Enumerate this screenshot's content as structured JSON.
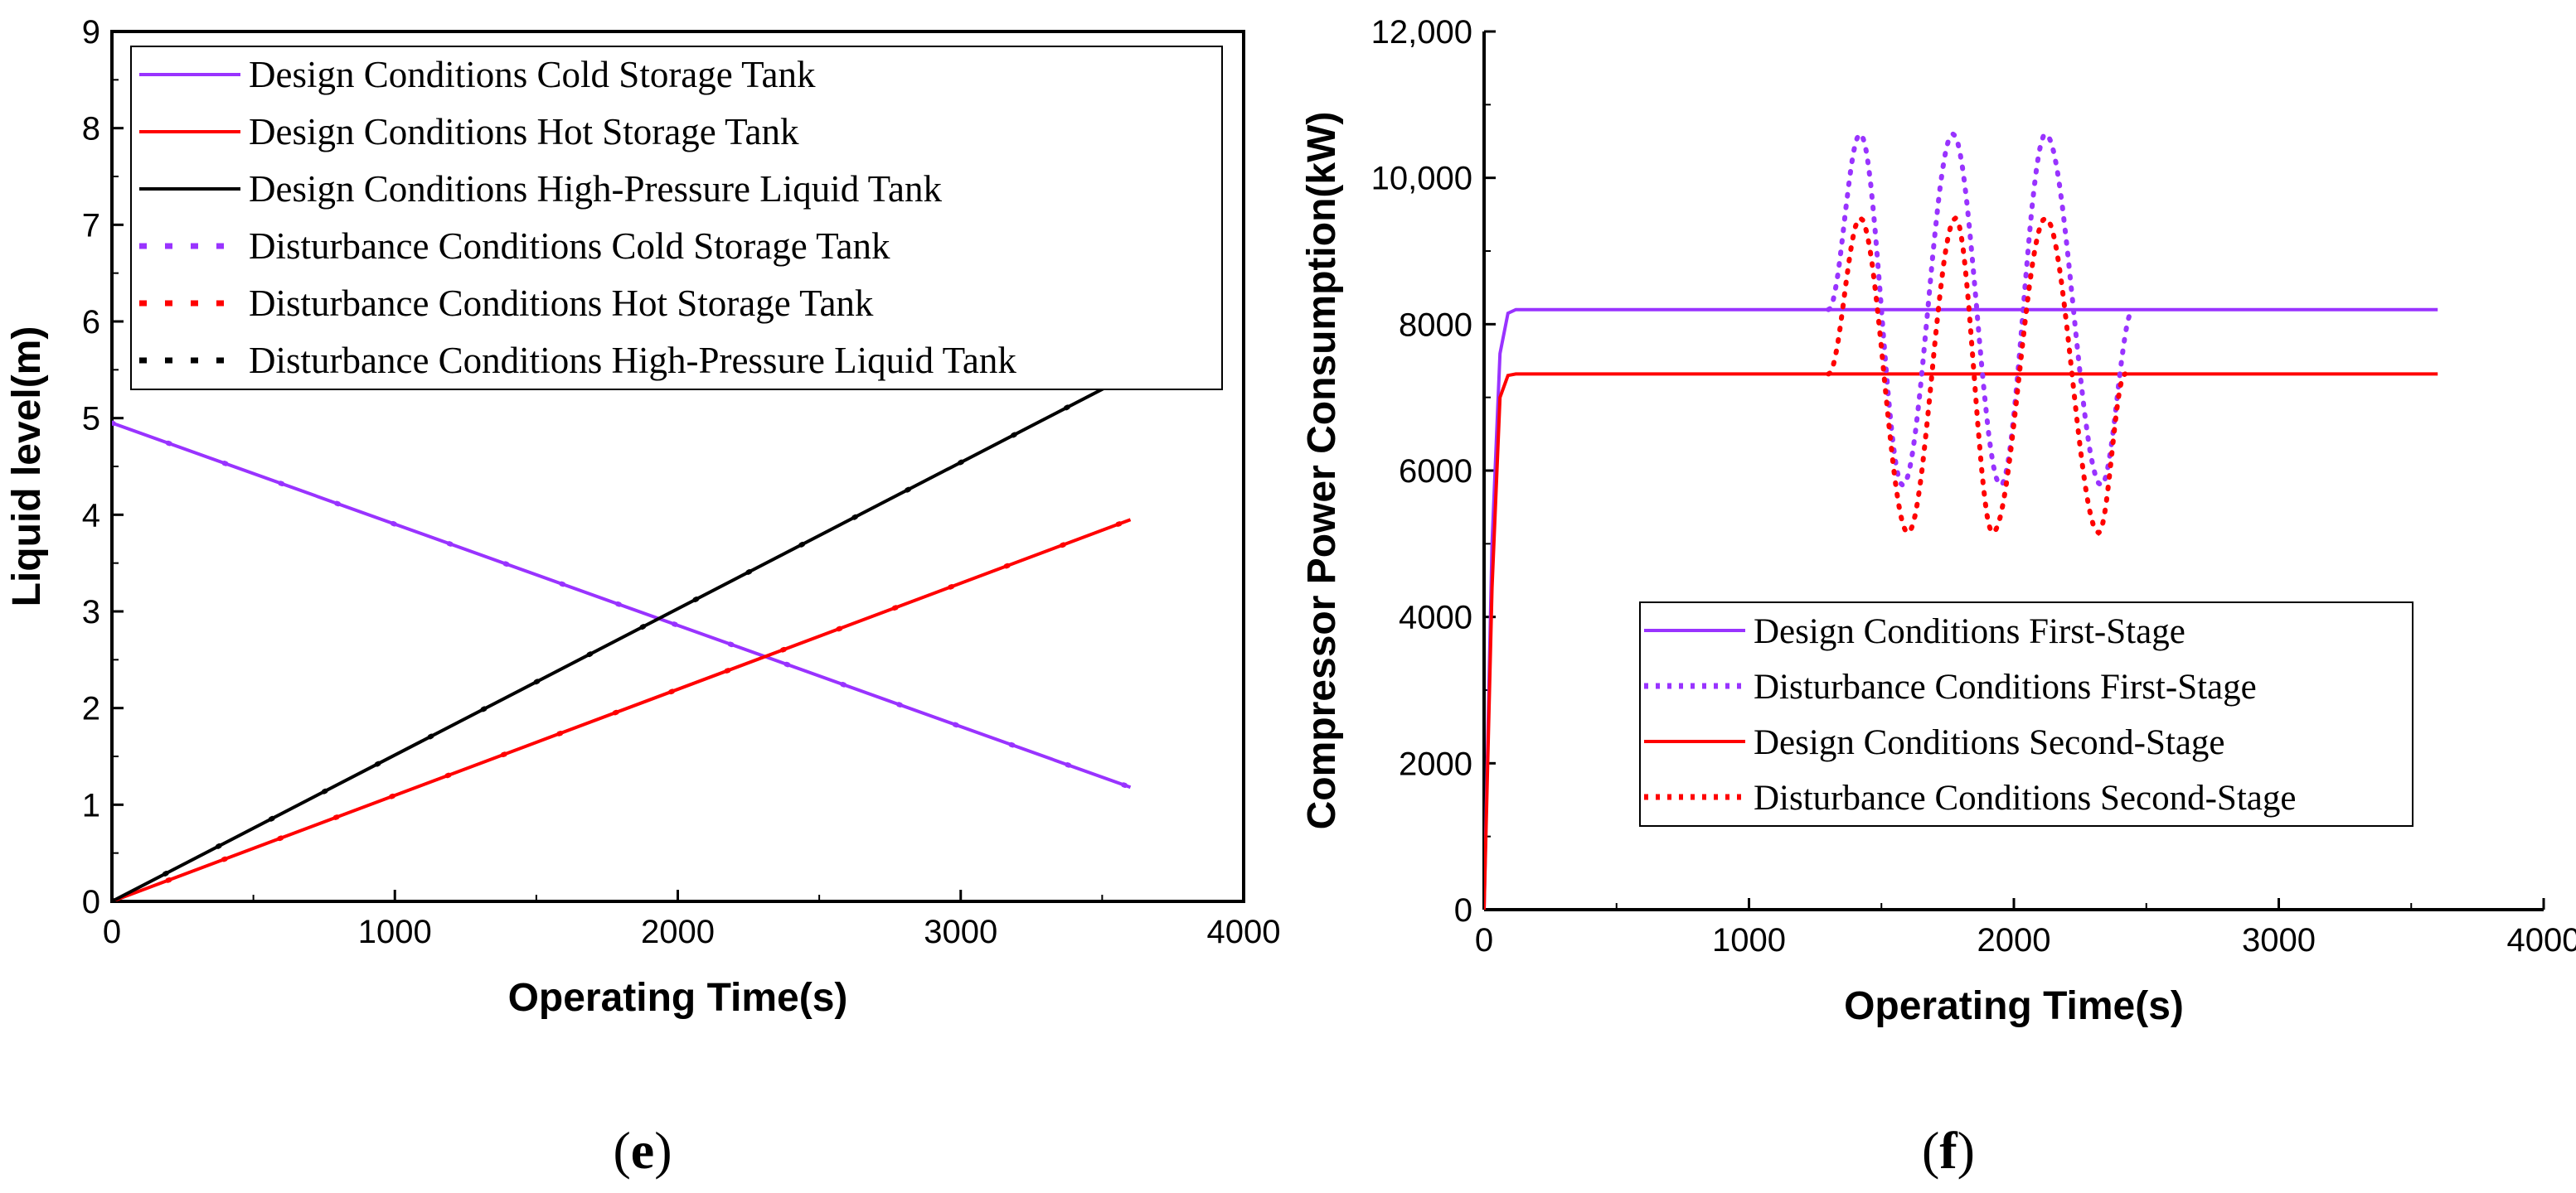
{
  "panels": [
    {
      "caption_label": "e",
      "plot_frame": "boxed",
      "legend_placement": "top-left",
      "chart_data": {
        "type": "line",
        "title": "",
        "xlabel": "Operating Time(s)",
        "ylabel": "Liquid level(m)",
        "xlim": [
          0,
          4000
        ],
        "ylim": [
          0,
          9
        ],
        "xticks": [
          0,
          1000,
          2000,
          3000,
          4000
        ],
        "xtick_labels": [
          "0",
          "1000",
          "2000",
          "3000",
          "4000"
        ],
        "yticks": [
          0,
          1,
          2,
          3,
          4,
          5,
          6,
          7,
          8,
          9
        ],
        "ytick_labels": [
          "0",
          "1",
          "2",
          "3",
          "4",
          "5",
          "6",
          "7",
          "8",
          "9"
        ],
        "grid": false,
        "series": [
          {
            "name": "Design Conditions Cold Storage Tank",
            "color": "#9933ff",
            "style": "solid",
            "x": [
              0,
              3600
            ],
            "y": [
              4.95,
              1.18
            ]
          },
          {
            "name": "Design Conditions Hot Storage Tank",
            "color": "#ff0000",
            "style": "solid",
            "x": [
              0,
              3600
            ],
            "y": [
              0,
              3.95
            ]
          },
          {
            "name": "Design Conditions High-Pressure Liquid Tank",
            "color": "#000000",
            "style": "solid",
            "x": [
              0,
              3600
            ],
            "y": [
              0,
              5.45
            ]
          },
          {
            "name": "Disturbance Conditions Cold Storage Tank",
            "color": "#9933ff",
            "style": "dotted",
            "x": [
              0,
              3600
            ],
            "y": [
              4.95,
              1.18
            ]
          },
          {
            "name": "Disturbance Conditions  Hot Storage Tank",
            "color": "#ff0000",
            "style": "dotted",
            "x": [
              0,
              3600
            ],
            "y": [
              0,
              3.95
            ]
          },
          {
            "name": "Disturbance Conditions High-Pressure Liquid Tank",
            "color": "#000000",
            "style": "dotted",
            "x": [
              0,
              3600
            ],
            "y": [
              0,
              5.45
            ]
          }
        ]
      }
    },
    {
      "caption_label": "f",
      "plot_frame": "open",
      "legend_placement": "lower-right",
      "chart_data": {
        "type": "line",
        "title": "",
        "xlabel": "Operating Time(s)",
        "ylabel": "Compressor Power Consumption(kW)",
        "xlim": [
          0,
          4000
        ],
        "ylim": [
          0,
          12000
        ],
        "xticks": [
          0,
          1000,
          2000,
          3000,
          4000
        ],
        "xtick_labels": [
          "0",
          "1000",
          "2000",
          "3000",
          "4000"
        ],
        "yticks": [
          0,
          2000,
          4000,
          6000,
          8000,
          10000,
          12000
        ],
        "ytick_labels": [
          "0",
          "2000",
          "4000",
          "6000",
          "8000",
          "10,000",
          "12,000"
        ],
        "grid": false,
        "series": [
          {
            "name": "Design Conditions First-Stage",
            "color": "#9933ff",
            "style": "solid",
            "x": [
              0,
              30,
              60,
              90,
              120,
              3600
            ],
            "y": [
              0,
              5000,
              7600,
              8150,
              8200,
              8200
            ]
          },
          {
            "name": "Disturbance Conditions First-Stage",
            "color": "#9933ff",
            "style": "dotted",
            "x": [
              1300,
              1420,
              1580,
              1770,
              1950,
              2120,
              2330,
              2450
            ],
            "y": [
              8200,
              10600,
              5800,
              10600,
              5800,
              10600,
              5800,
              8200
            ]
          },
          {
            "name": "Design Conditions Second-Stage",
            "color": "#ff0000",
            "style": "solid",
            "x": [
              0,
              30,
              60,
              90,
              120,
              3600
            ],
            "y": [
              0,
              4400,
              7000,
              7300,
              7320,
              7320
            ]
          },
          {
            "name": "Disturbance Conditions Second-Stage",
            "color": "#ff0000",
            "style": "dotted",
            "x": [
              1300,
              1420,
              1600,
              1780,
              1920,
              2120,
              2320,
              2420
            ],
            "y": [
              7320,
              9450,
              5150,
              9450,
              5150,
              9450,
              5150,
              7320
            ]
          }
        ]
      }
    }
  ]
}
